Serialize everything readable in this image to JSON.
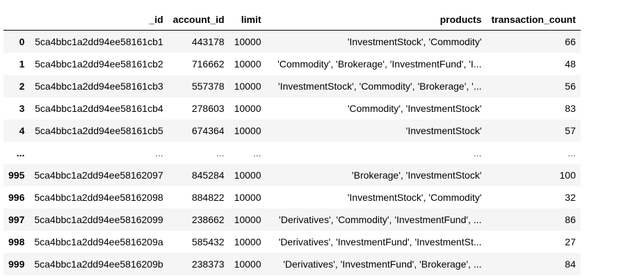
{
  "table": {
    "columns": [
      "",
      "_id",
      "account_id",
      "limit",
      "products",
      "transaction_count"
    ],
    "rows": [
      {
        "index": "0",
        "_id": "5ca4bbc1a2dd94ee58161cb1",
        "account_id": "443178",
        "limit": "10000",
        "products": "'InvestmentStock', 'Commodity'",
        "transaction_count": "66"
      },
      {
        "index": "1",
        "_id": "5ca4bbc1a2dd94ee58161cb2",
        "account_id": "716662",
        "limit": "10000",
        "products": "'Commodity', 'Brokerage', 'InvestmentFund', 'I...",
        "transaction_count": "48"
      },
      {
        "index": "2",
        "_id": "5ca4bbc1a2dd94ee58161cb3",
        "account_id": "557378",
        "limit": "10000",
        "products": "'InvestmentStock', 'Commodity', 'Brokerage', '...",
        "transaction_count": "56"
      },
      {
        "index": "3",
        "_id": "5ca4bbc1a2dd94ee58161cb4",
        "account_id": "278603",
        "limit": "10000",
        "products": "'Commodity', 'InvestmentStock'",
        "transaction_count": "83"
      },
      {
        "index": "4",
        "_id": "5ca4bbc1a2dd94ee58161cb5",
        "account_id": "674364",
        "limit": "10000",
        "products": "'InvestmentStock'",
        "transaction_count": "57"
      },
      {
        "index": "...",
        "_id": "...",
        "account_id": "...",
        "limit": "...",
        "products": "...",
        "transaction_count": "..."
      },
      {
        "index": "995",
        "_id": "5ca4bbc1a2dd94ee58162097",
        "account_id": "845284",
        "limit": "10000",
        "products": "'Brokerage', 'InvestmentStock'",
        "transaction_count": "100"
      },
      {
        "index": "996",
        "_id": "5ca4bbc1a2dd94ee58162098",
        "account_id": "884822",
        "limit": "10000",
        "products": "'InvestmentStock', 'Commodity'",
        "transaction_count": "32"
      },
      {
        "index": "997",
        "_id": "5ca4bbc1a2dd94ee58162099",
        "account_id": "238662",
        "limit": "10000",
        "products": "'Derivatives', 'Commodity', 'InvestmentFund', ...",
        "transaction_count": "86"
      },
      {
        "index": "998",
        "_id": "5ca4bbc1a2dd94ee5816209a",
        "account_id": "585432",
        "limit": "10000",
        "products": "'Derivatives', 'InvestmentFund', 'InvestmentSt...",
        "transaction_count": "27"
      },
      {
        "index": "999",
        "_id": "5ca4bbc1a2dd94ee5816209b",
        "account_id": "238373",
        "limit": "10000",
        "products": "'Derivatives', 'InvestmentFund', 'Brokerage', ...",
        "transaction_count": "84"
      }
    ]
  }
}
